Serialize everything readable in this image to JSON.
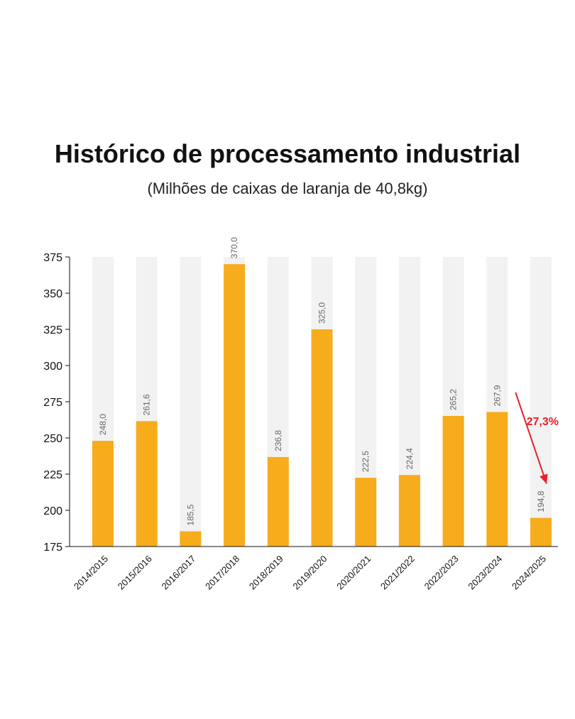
{
  "chart_data": {
    "type": "bar",
    "title": "Histórico de processamento industrial",
    "subtitle": "(Milhões de caixas de laranja de 40,8kg)",
    "categories": [
      "2014/2015",
      "2015/2016",
      "2016/2017",
      "2017/2018",
      "2018/2019",
      "2019/2020",
      "2020/2021",
      "2021/2022",
      "2022/2023",
      "2023/2024",
      "2024/2025"
    ],
    "values": [
      248.0,
      261.6,
      185.5,
      370.0,
      236.8,
      325.0,
      222.5,
      224.4,
      265.2,
      267.9,
      194.8
    ],
    "value_labels": [
      "248,0",
      "261,6",
      "185,5",
      "370,0",
      "236,8",
      "325,0",
      "222,5",
      "224,4",
      "265,2",
      "267,9",
      "194,8"
    ],
    "ylim": [
      175,
      375
    ],
    "yticks": [
      175,
      200,
      225,
      250,
      275,
      300,
      325,
      350,
      375
    ],
    "grid": false,
    "bar_color": "#F7AC1B",
    "track_color": "#F2F2F2",
    "annotation": {
      "text": "27,3%",
      "from_category": "2023/2024",
      "to_category": "2024/2025",
      "color": "#E8202A"
    }
  }
}
